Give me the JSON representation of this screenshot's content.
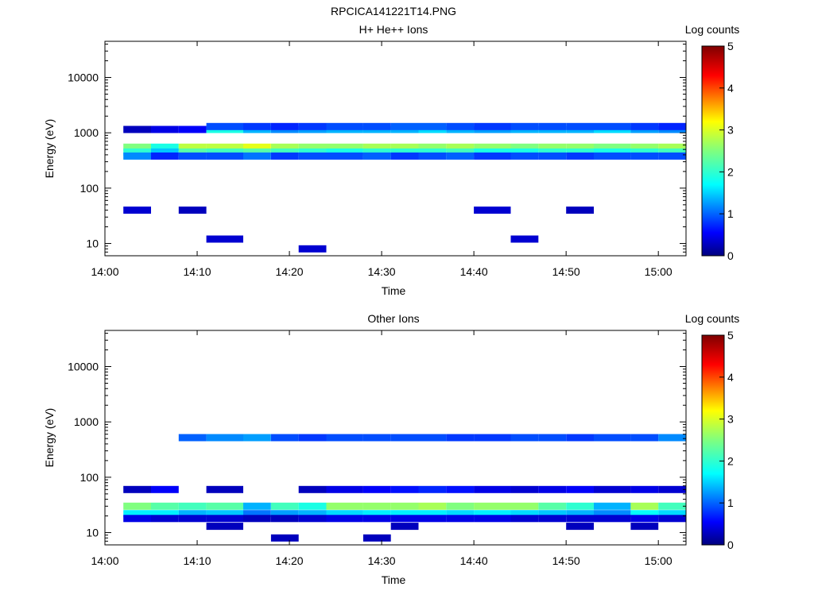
{
  "figure_title": "RPCICA141221T14.PNG",
  "chart_data": [
    {
      "type": "heatmap",
      "title": "H+ He++ Ions",
      "xlabel": "Time",
      "ylabel": "Energy (eV)",
      "colorbar_label": "Log counts",
      "colorbar_ticks": [
        "0",
        "1",
        "2",
        "3",
        "4",
        "5"
      ],
      "colorbar_range": [
        0,
        5
      ],
      "colormap": [
        "#00007f",
        "#0000ff",
        "#007fff",
        "#00ffff",
        "#7fff7f",
        "#ffff00",
        "#ff7f00",
        "#ff0000",
        "#7f0000"
      ],
      "x_range": [
        "14:00",
        "15:03"
      ],
      "x_ticks": [
        "14:00",
        "14:10",
        "14:20",
        "14:30",
        "14:40",
        "14:50",
        "15:00"
      ],
      "y_scale": "log",
      "y_range": [
        6,
        45000
      ],
      "y_ticks": [
        "10",
        "100",
        "1000",
        "10000"
      ],
      "time_bins": [
        "14:02-14:05",
        "14:05-14:08",
        "14:08-14:11",
        "14:11-14:15",
        "14:15-14:18",
        "14:18-14:21",
        "14:21-14:24",
        "14:24-14:28",
        "14:28-14:31",
        "14:31-14:34",
        "14:34-14:37",
        "14:37-14:40",
        "14:40-14:44",
        "14:44-14:47",
        "14:47-14:50",
        "14:50-14:53",
        "14:53-14:57",
        "14:57-15:00",
        "15:00-15:03"
      ],
      "bands": [
        {
          "energy_ev": 550,
          "log_counts": [
            2.5,
            2.0,
            2.8,
            2.8,
            3.0,
            2.7,
            2.6,
            2.6,
            2.7,
            2.7,
            2.6,
            2.7,
            2.6,
            2.5,
            2.6,
            2.6,
            2.5,
            2.6,
            2.7
          ]
        },
        {
          "energy_ev": 450,
          "log_counts": [
            2.1,
            1.6,
            2.3,
            2.2,
            2.3,
            2.2,
            2.1,
            2.0,
            2.1,
            2.1,
            2.1,
            2.2,
            2.0,
            2.0,
            2.1,
            2.1,
            2.0,
            2.1,
            2.2
          ]
        },
        {
          "energy_ev": 1150,
          "log_counts": [
            0.3,
            0.5,
            0.6,
            2.0,
            1.5,
            1.3,
            1.4,
            1.5,
            1.5,
            1.5,
            1.7,
            1.5,
            1.4,
            1.5,
            1.5,
            1.5,
            1.7,
            1.4,
            1.3
          ]
        },
        {
          "energy_ev": 1300,
          "log_counts": [
            0,
            0,
            0,
            1.0,
            0.9,
            0.8,
            0.9,
            1.0,
            1.0,
            1.1,
            1.1,
            1.0,
            0.9,
            1.0,
            1.0,
            1.0,
            1.0,
            0.9,
            0.8
          ]
        },
        {
          "energy_ev": 380,
          "log_counts": [
            1.3,
            0.8,
            1.0,
            1.0,
            1.2,
            0.9,
            1.0,
            1.0,
            1.1,
            0.9,
            1.0,
            1.1,
            0.9,
            1.0,
            1.0,
            0.9,
            1.0,
            1.0,
            1.0
          ]
        },
        {
          "energy_ev": 40,
          "log_counts": [
            0.4,
            0,
            0.3,
            0,
            0,
            0,
            0,
            0,
            0,
            0,
            0,
            0,
            0.4,
            0,
            0,
            0.3,
            0,
            0,
            0
          ]
        },
        {
          "energy_ev": 12,
          "log_counts": [
            0,
            0,
            0,
            0.4,
            0,
            0,
            0,
            0,
            0,
            0,
            0,
            0,
            0,
            0.4,
            0,
            0,
            0,
            0,
            0
          ]
        },
        {
          "energy_ev": 8,
          "log_counts": [
            0,
            0,
            0,
            0,
            0,
            0,
            0.4,
            0,
            0,
            0,
            0,
            0,
            0,
            0,
            0,
            0,
            0,
            0,
            0
          ]
        }
      ]
    },
    {
      "type": "heatmap",
      "title": "Other Ions",
      "xlabel": "Time",
      "ylabel": "Energy (eV)",
      "colorbar_label": "Log counts",
      "colorbar_ticks": [
        "0",
        "1",
        "2",
        "3",
        "4",
        "5"
      ],
      "colorbar_range": [
        0,
        5
      ],
      "x_range": [
        "14:00",
        "15:03"
      ],
      "x_ticks": [
        "14:00",
        "14:10",
        "14:20",
        "14:30",
        "14:40",
        "14:50",
        "15:00"
      ],
      "y_scale": "log",
      "y_range": [
        6,
        45000
      ],
      "y_ticks": [
        "10",
        "100",
        "1000",
        "10000"
      ],
      "time_bins": [
        "14:02-14:05",
        "14:05-14:08",
        "14:08-14:11",
        "14:11-14:15",
        "14:15-14:18",
        "14:18-14:21",
        "14:21-14:24",
        "14:24-14:28",
        "14:28-14:31",
        "14:31-14:34",
        "14:34-14:37",
        "14:37-14:40",
        "14:40-14:44",
        "14:44-14:47",
        "14:47-14:50",
        "14:50-14:53",
        "14:53-14:57",
        "14:57-15:00",
        "15:00-15:03"
      ],
      "bands": [
        {
          "energy_ev": 30,
          "log_counts": [
            2.5,
            2.3,
            2.2,
            2.3,
            1.5,
            2.2,
            2.0,
            2.6,
            2.6,
            2.6,
            2.7,
            2.5,
            2.6,
            2.6,
            2.3,
            2.1,
            1.5,
            2.7,
            2.2
          ]
        },
        {
          "energy_ev": 22,
          "log_counts": [
            1.8,
            1.8,
            1.5,
            1.6,
            1.2,
            1.4,
            1.5,
            1.7,
            1.8,
            1.8,
            1.8,
            1.7,
            1.8,
            1.7,
            1.6,
            1.5,
            1.3,
            1.9,
            1.7
          ]
        },
        {
          "energy_ev": 18,
          "log_counts": [
            0.5,
            0.4,
            0.4,
            0.4,
            0.3,
            0.3,
            0.4,
            0.5,
            0.5,
            0.5,
            0.5,
            0.5,
            0.5,
            0.4,
            0.4,
            0.4,
            0.4,
            0.5,
            0.4
          ]
        },
        {
          "energy_ev": 520,
          "log_counts": [
            0,
            0,
            1.1,
            1.3,
            1.4,
            1.0,
            0.9,
            1.0,
            1.0,
            1.0,
            1.0,
            0.9,
            0.9,
            1.0,
            1.0,
            0.9,
            1.0,
            1.0,
            1.3
          ]
        },
        {
          "energy_ev": 60,
          "log_counts": [
            0.3,
            0.6,
            0,
            0.3,
            0,
            0,
            0.3,
            0.5,
            0.6,
            0.7,
            0.8,
            0.7,
            0.5,
            0.4,
            0.5,
            0.6,
            0.4,
            0.5,
            0.4
          ]
        },
        {
          "energy_ev": 13,
          "log_counts": [
            0,
            0,
            0,
            0.3,
            0,
            0,
            0,
            0,
            0,
            0.3,
            0,
            0,
            0,
            0,
            0,
            0.3,
            0,
            0.3,
            0
          ]
        },
        {
          "energy_ev": 8,
          "log_counts": [
            0,
            0,
            0,
            0,
            0,
            0.3,
            0,
            0,
            0.3,
            0,
            0,
            0,
            0,
            0,
            0,
            0,
            0,
            0,
            0
          ]
        }
      ]
    }
  ]
}
